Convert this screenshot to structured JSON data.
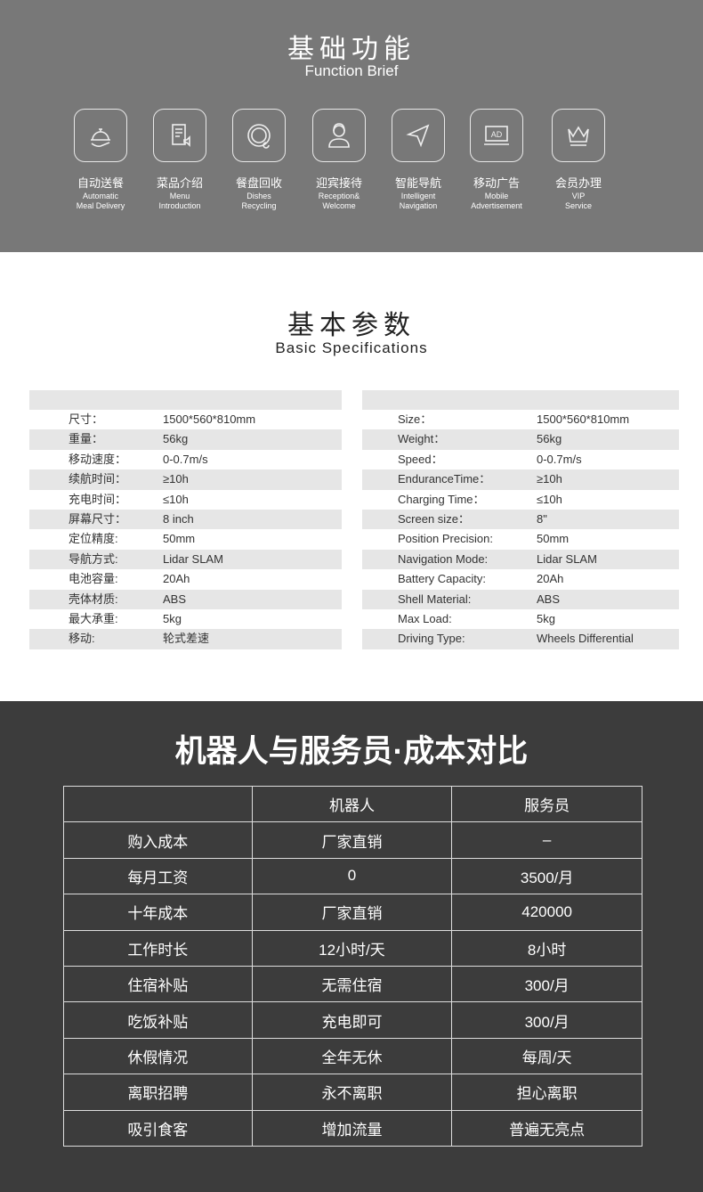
{
  "function": {
    "title": "基础功能",
    "subtitle": "Function Brief",
    "items": [
      {
        "cn": "自动送餐",
        "en1": "Automatic",
        "en2": "Meal Delivery",
        "icon": "food-cloche-icon"
      },
      {
        "cn": "菜品介绍",
        "en1": "Menu",
        "en2": "Introduction",
        "icon": "menu-speaker-icon"
      },
      {
        "cn": "餐盘回收",
        "en1": "Dishes",
        "en2": "Recycling",
        "icon": "plate-recycle-icon"
      },
      {
        "cn": "迎宾接待",
        "en1": "Reception&",
        "en2": "Welcome",
        "icon": "receptionist-icon"
      },
      {
        "cn": "智能导航",
        "en1": "Intelligent",
        "en2": "Navigation",
        "icon": "navigation-arrow-icon"
      },
      {
        "cn": "移动广告",
        "en1": "Mobile",
        "en2": "Advertisement",
        "icon": "ad-screen-icon",
        "ad": "AD"
      },
      {
        "cn": "会员办理",
        "en1": "VIP",
        "en2": "Service",
        "icon": "crown-icon"
      }
    ]
  },
  "specs": {
    "title": "基本参数",
    "subtitle": "Basic Specifications",
    "cn": [
      [
        "尺寸：",
        "1500*560*810mm"
      ],
      [
        "重量：",
        "56kg"
      ],
      [
        "移动速度：",
        "0-0.7m/s"
      ],
      [
        "续航时间：",
        "≥10h"
      ],
      [
        "充电时间：",
        "≤10h"
      ],
      [
        "屏幕尺寸：",
        "8 inch"
      ],
      [
        "定位精度:",
        "50mm"
      ],
      [
        "导航方式:",
        "Lidar SLAM"
      ],
      [
        "电池容量:",
        "20Ah"
      ],
      [
        "壳体材质:",
        "ABS"
      ],
      [
        "最大承重:",
        "5kg"
      ],
      [
        "移动:",
        "轮式差速"
      ]
    ],
    "en": [
      [
        "Size：",
        "1500*560*810mm"
      ],
      [
        "Weight：",
        "56kg"
      ],
      [
        "Speed：",
        "0-0.7m/s"
      ],
      [
        "EnduranceTime：",
        "≥10h"
      ],
      [
        "Charging Time：",
        "≤10h"
      ],
      [
        "Screen size：",
        "8\""
      ],
      [
        "Position Precision:",
        "50mm"
      ],
      [
        "Navigation Mode:",
        "Lidar SLAM"
      ],
      [
        "Battery Capacity:",
        "20Ah"
      ],
      [
        "Shell Material:",
        "ABS"
      ],
      [
        "Max Load:",
        "5kg"
      ],
      [
        "Driving Type:",
        "Wheels Differential"
      ]
    ]
  },
  "compare": {
    "title": "机器人与服务员·成本对比",
    "rows": [
      [
        "",
        "机器人",
        "服务员"
      ],
      [
        "购入成本",
        "厂家直销",
        "–"
      ],
      [
        "每月工资",
        "0",
        "3500/月"
      ],
      [
        "十年成本",
        "厂家直销",
        "420000"
      ],
      [
        "工作时长",
        "12小时/天",
        "8小时"
      ],
      [
        "住宿补贴",
        "无需住宿",
        "300/月"
      ],
      [
        "吃饭补贴",
        "充电即可",
        "300/月"
      ],
      [
        "休假情况",
        "全年无休",
        "每周/天"
      ],
      [
        "离职招聘",
        "永不离职",
        "担心离职"
      ],
      [
        "吸引食客",
        "增加流量",
        "普遍无亮点"
      ]
    ]
  }
}
